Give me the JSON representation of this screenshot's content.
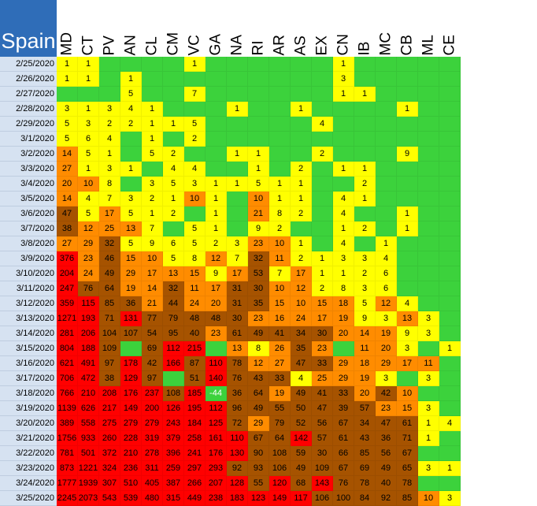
{
  "title": "Spain",
  "columns": [
    "MD",
    "CT",
    "PV",
    "AN",
    "CL",
    "CM",
    "VC",
    "GA",
    "NA",
    "RI",
    "AR",
    "AS",
    "EX",
    "CN",
    "IB",
    "MC",
    "CB",
    "ML",
    "CE"
  ],
  "colors": {
    "empty": "#3cd23c",
    "yellow": "#ffff00",
    "orange": "#ff8c00",
    "brown": "#a65300",
    "red": "#ff0000",
    "green_value": "#3cd23c",
    "header_bg": "#2f6db8",
    "row_header_bg": "#d6e2f1"
  },
  "chart_data": {
    "type": "heatmap",
    "title": "Spain",
    "rows": [
      {
        "date": "2/25/2020",
        "values": [
          1,
          1,
          null,
          null,
          null,
          null,
          1,
          null,
          null,
          null,
          null,
          null,
          null,
          1,
          null,
          null,
          null,
          null,
          null
        ]
      },
      {
        "date": "2/26/2020",
        "values": [
          1,
          1,
          null,
          1,
          null,
          null,
          null,
          null,
          null,
          null,
          null,
          null,
          null,
          3,
          null,
          null,
          null,
          null,
          null
        ]
      },
      {
        "date": "2/27/2020",
        "values": [
          null,
          null,
          null,
          5,
          null,
          null,
          7,
          null,
          null,
          null,
          null,
          null,
          null,
          1,
          1,
          null,
          null,
          null,
          null
        ]
      },
      {
        "date": "2/28/2020",
        "values": [
          3,
          1,
          3,
          4,
          1,
          null,
          null,
          null,
          1,
          null,
          null,
          1,
          null,
          null,
          null,
          null,
          1,
          null,
          null
        ]
      },
      {
        "date": "2/29/2020",
        "values": [
          5,
          3,
          2,
          2,
          1,
          1,
          5,
          null,
          null,
          null,
          null,
          null,
          4,
          null,
          null,
          null,
          null,
          null,
          null
        ]
      },
      {
        "date": "3/1/2020",
        "values": [
          5,
          6,
          4,
          null,
          1,
          null,
          2,
          null,
          null,
          null,
          null,
          null,
          null,
          null,
          null,
          null,
          null,
          null,
          null
        ]
      },
      {
        "date": "3/2/2020",
        "values": [
          14,
          5,
          1,
          null,
          5,
          2,
          null,
          null,
          1,
          1,
          null,
          null,
          2,
          null,
          null,
          null,
          9,
          null,
          null
        ]
      },
      {
        "date": "3/3/2020",
        "values": [
          27,
          1,
          3,
          1,
          null,
          4,
          4,
          null,
          null,
          1,
          null,
          2,
          null,
          1,
          1,
          null,
          null,
          null,
          null
        ]
      },
      {
        "date": "3/4/2020",
        "values": [
          20,
          10,
          8,
          null,
          3,
          5,
          3,
          1,
          1,
          5,
          1,
          1,
          null,
          null,
          2,
          null,
          null,
          null,
          null
        ]
      },
      {
        "date": "3/5/2020",
        "values": [
          14,
          4,
          7,
          3,
          2,
          1,
          10,
          1,
          null,
          10,
          1,
          1,
          null,
          4,
          1,
          null,
          null,
          null,
          null
        ]
      },
      {
        "date": "3/6/2020",
        "values": [
          47,
          5,
          17,
          5,
          1,
          2,
          null,
          1,
          null,
          21,
          8,
          2,
          null,
          4,
          null,
          null,
          1,
          null,
          null
        ]
      },
      {
        "date": "3/7/2020",
        "values": [
          38,
          12,
          25,
          13,
          7,
          null,
          5,
          1,
          null,
          9,
          2,
          null,
          null,
          1,
          2,
          null,
          1,
          null,
          null
        ]
      },
      {
        "date": "3/8/2020",
        "values": [
          27,
          29,
          32,
          5,
          9,
          6,
          5,
          2,
          3,
          23,
          10,
          1,
          null,
          4,
          null,
          1,
          null,
          null,
          null
        ]
      },
      {
        "date": "3/9/2020",
        "values": [
          376,
          23,
          46,
          15,
          10,
          5,
          8,
          12,
          7,
          32,
          11,
          2,
          1,
          3,
          3,
          4,
          null,
          null,
          null
        ]
      },
      {
        "date": "3/10/2020",
        "values": [
          204,
          24,
          49,
          29,
          17,
          13,
          15,
          9,
          17,
          53,
          7,
          17,
          1,
          1,
          2,
          6,
          null,
          null,
          null
        ]
      },
      {
        "date": "3/11/2020",
        "values": [
          247,
          76,
          64,
          19,
          14,
          32,
          11,
          17,
          31,
          30,
          10,
          12,
          2,
          8,
          3,
          6,
          null,
          null,
          null
        ]
      },
      {
        "date": "3/12/2020",
        "values": [
          359,
          115,
          85,
          36,
          21,
          44,
          24,
          20,
          31,
          35,
          15,
          10,
          15,
          18,
          5,
          12,
          4,
          null,
          null
        ]
      },
      {
        "date": "3/13/2020",
        "values": [
          1271,
          193,
          71,
          131,
          77,
          79,
          48,
          48,
          30,
          23,
          16,
          24,
          17,
          19,
          9,
          3,
          13,
          3,
          null
        ]
      },
      {
        "date": "3/14/2020",
        "values": [
          281,
          206,
          104,
          107,
          54,
          95,
          40,
          23,
          61,
          49,
          41,
          34,
          30,
          20,
          14,
          19,
          9,
          3,
          null
        ]
      },
      {
        "date": "3/15/2020",
        "values": [
          804,
          188,
          109,
          null,
          69,
          112,
          215,
          null,
          13,
          8,
          26,
          35,
          23,
          null,
          11,
          20,
          3,
          null,
          1
        ]
      },
      {
        "date": "3/16/2020",
        "values": [
          621,
          491,
          97,
          178,
          42,
          166,
          87,
          110,
          78,
          12,
          27,
          47,
          33,
          29,
          18,
          29,
          17,
          11,
          null
        ]
      },
      {
        "date": "3/17/2020",
        "values": [
          706,
          472,
          38,
          129,
          97,
          null,
          51,
          140,
          76,
          43,
          33,
          4,
          25,
          29,
          19,
          3,
          null,
          3,
          null
        ]
      },
      {
        "date": "3/18/2020",
        "values": [
          766,
          210,
          208,
          176,
          237,
          108,
          185,
          -44,
          36,
          64,
          19,
          49,
          41,
          33,
          20,
          42,
          10,
          null,
          null
        ]
      },
      {
        "date": "3/19/2020",
        "values": [
          1139,
          626,
          217,
          149,
          200,
          126,
          195,
          112,
          96,
          49,
          55,
          50,
          47,
          39,
          57,
          23,
          15,
          3,
          null
        ]
      },
      {
        "date": "3/20/2020",
        "values": [
          389,
          558,
          275,
          279,
          279,
          243,
          184,
          125,
          72,
          29,
          79,
          52,
          56,
          67,
          34,
          47,
          61,
          1,
          4
        ]
      },
      {
        "date": "3/21/2020",
        "values": [
          1756,
          933,
          260,
          228,
          319,
          379,
          258,
          161,
          110,
          67,
          64,
          142,
          57,
          61,
          43,
          36,
          71,
          1,
          null
        ]
      },
      {
        "date": "3/22/2020",
        "values": [
          781,
          501,
          372,
          210,
          278,
          396,
          241,
          176,
          130,
          90,
          108,
          59,
          30,
          66,
          85,
          56,
          67,
          null,
          null
        ]
      },
      {
        "date": "3/23/2020",
        "values": [
          873,
          1221,
          324,
          236,
          311,
          259,
          297,
          293,
          92,
          93,
          106,
          49,
          109,
          67,
          69,
          49,
          65,
          3,
          1
        ]
      },
      {
        "date": "3/24/2020",
        "values": [
          1777,
          1939,
          307,
          510,
          405,
          387,
          266,
          207,
          128,
          55,
          120,
          68,
          143,
          76,
          78,
          40,
          78,
          null,
          null
        ]
      },
      {
        "date": "3/25/2020",
        "values": [
          2245,
          2073,
          543,
          539,
          480,
          315,
          449,
          238,
          183,
          123,
          149,
          117,
          106,
          100,
          84,
          92,
          85,
          10,
          3
        ]
      }
    ]
  }
}
